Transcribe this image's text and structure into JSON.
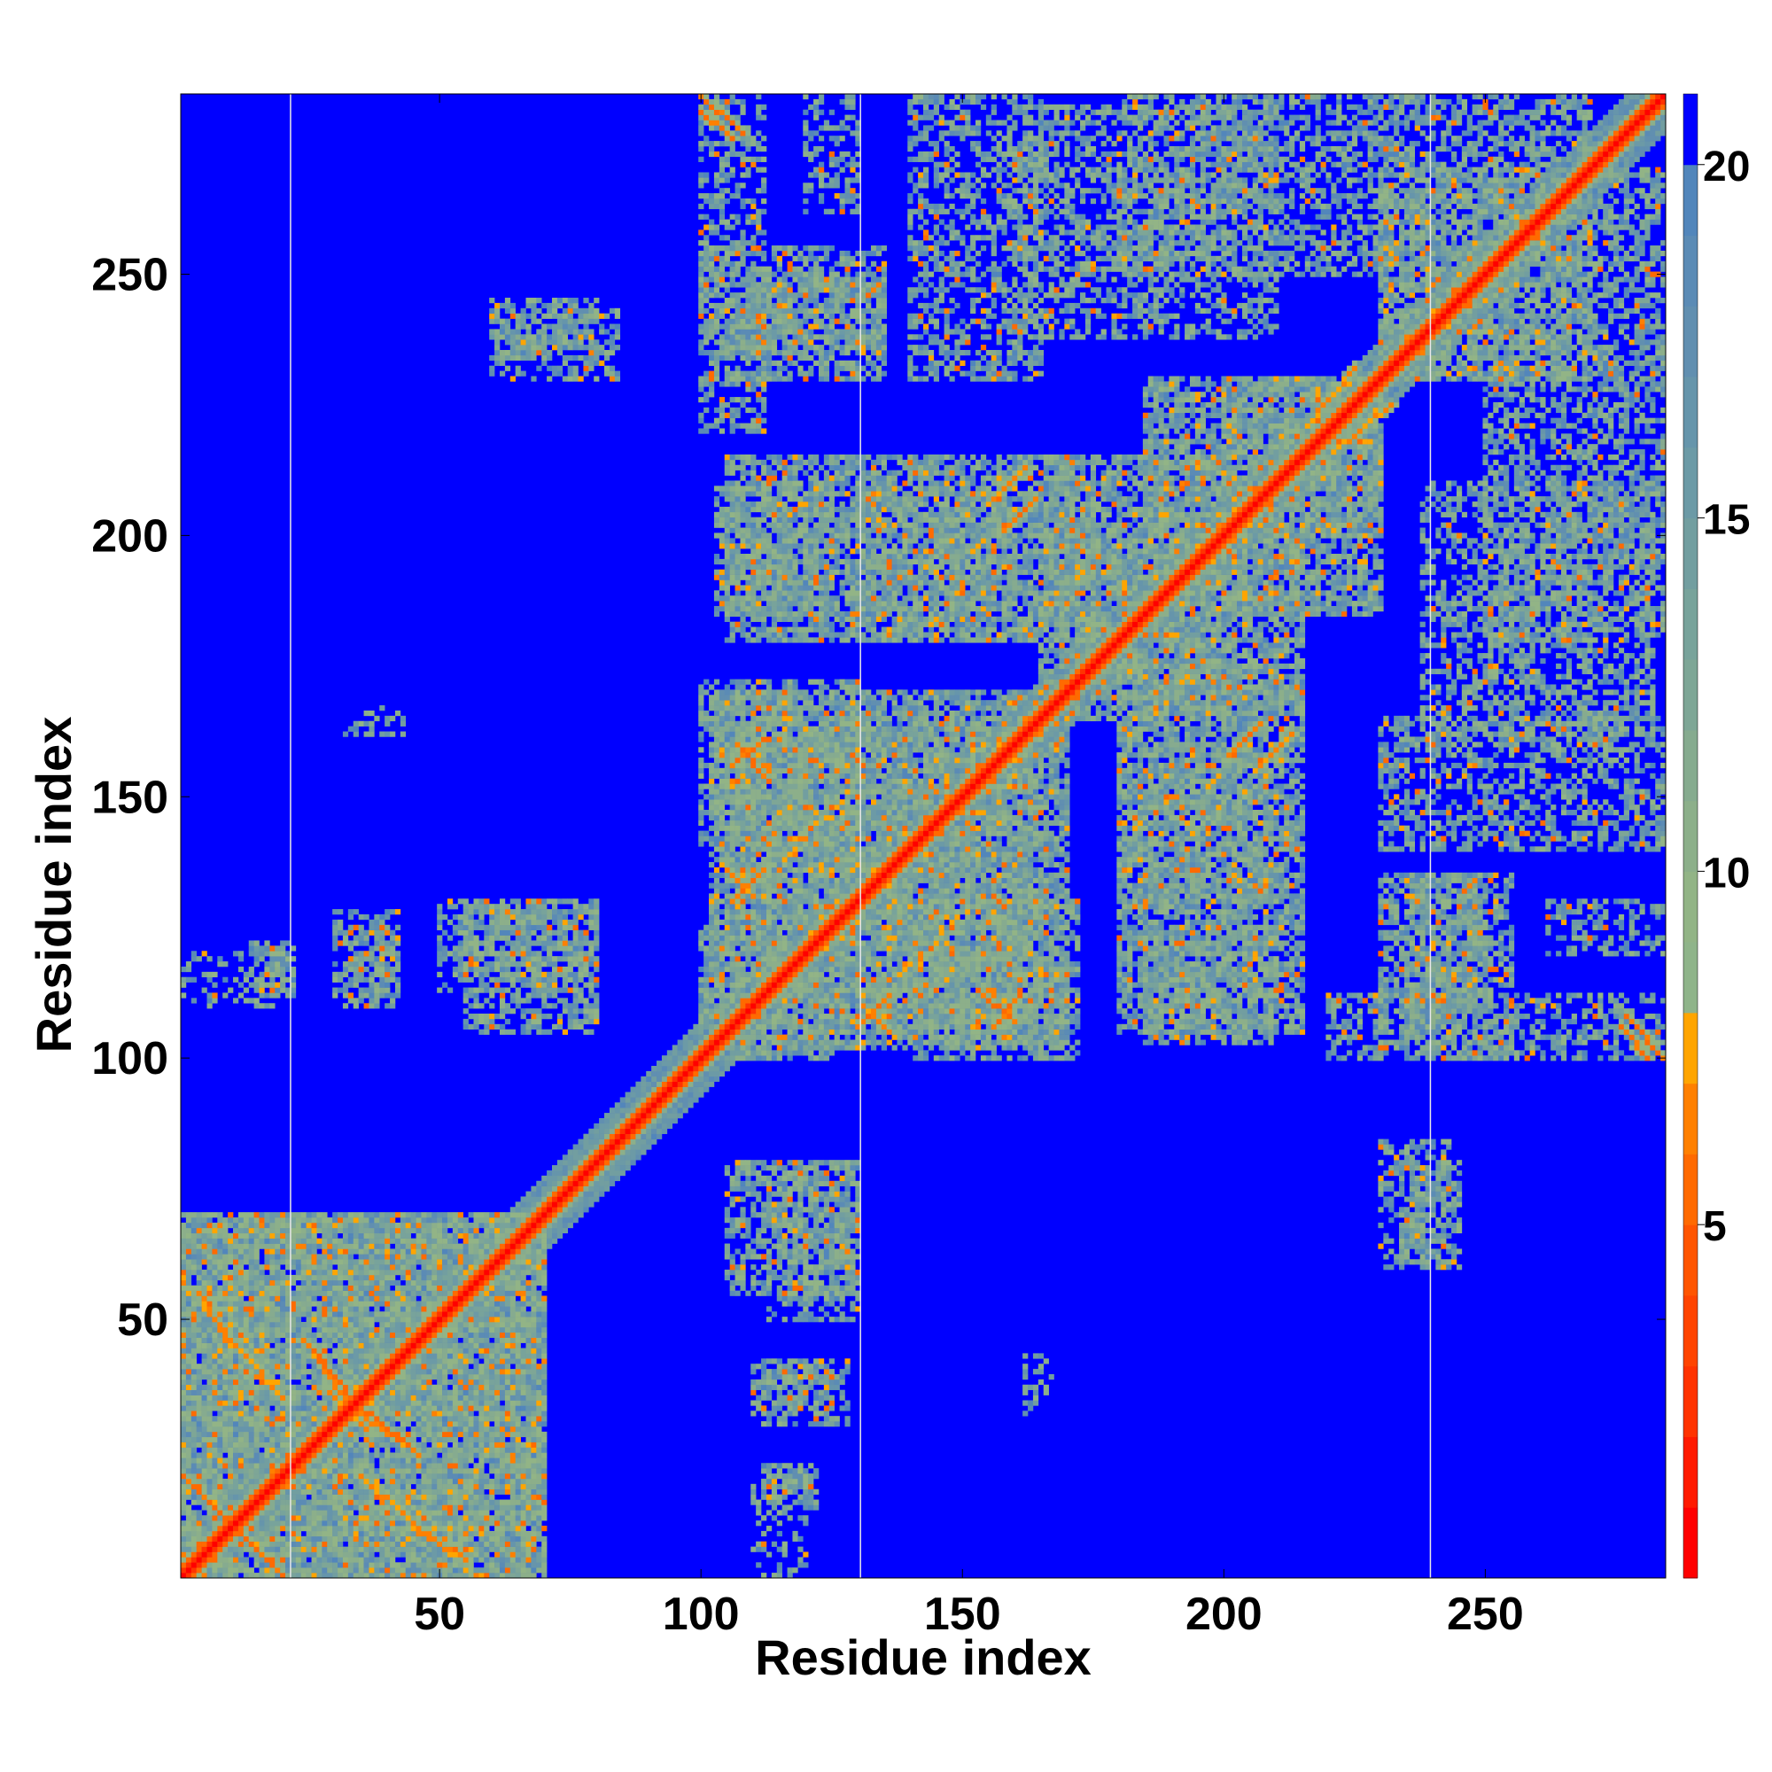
{
  "chart_data": {
    "type": "heatmap",
    "title": "",
    "xlabel": "Residue index",
    "ylabel": "Residue index",
    "n_residues": 284,
    "xlim": [
      1,
      284
    ],
    "ylim": [
      1,
      284
    ],
    "x_ticks": [
      50,
      100,
      150,
      200,
      250
    ],
    "y_ticks": [
      50,
      100,
      150,
      200,
      250
    ],
    "colorbar": {
      "ticks": [
        5,
        10,
        15,
        20
      ],
      "range": [
        0,
        21
      ],
      "levels": [
        {
          "max": 1,
          "color": "#ff0000"
        },
        {
          "max": 2,
          "color": "#ff1a00"
        },
        {
          "max": 3,
          "color": "#ff3300"
        },
        {
          "max": 4,
          "color": "#ff4400"
        },
        {
          "max": 5,
          "color": "#ff5500"
        },
        {
          "max": 6,
          "color": "#ff6a00"
        },
        {
          "max": 7,
          "color": "#ff8000"
        },
        {
          "max": 8,
          "color": "#ffa500"
        },
        {
          "max": 9,
          "color": "#8fb48a"
        },
        {
          "max": 10,
          "color": "#92b486"
        },
        {
          "max": 11,
          "color": "#8caf8a"
        },
        {
          "max": 12,
          "color": "#86ab8f"
        },
        {
          "max": 13,
          "color": "#7ea696"
        },
        {
          "max": 14,
          "color": "#78a39b"
        },
        {
          "max": 15,
          "color": "#729ea0"
        },
        {
          "max": 16,
          "color": "#6c9aa6"
        },
        {
          "max": 17,
          "color": "#6695ab"
        },
        {
          "max": 18,
          "color": "#618fb0"
        },
        {
          "max": 19,
          "color": "#5b8bb5"
        },
        {
          "max": 20,
          "color": "#5286bb"
        },
        {
          "max": 21,
          "color": "#0000ff"
        }
      ]
    },
    "background_color": "#0000ff",
    "chain_boundaries_x": [
      22,
      131,
      240
    ],
    "diagonal": {
      "start": 1,
      "end": 284,
      "core_value": 1.5,
      "band_width": 4
    },
    "contact_segments": [
      {
        "x": [
          1,
          20
        ],
        "y": [
          20,
          1
        ],
        "value": 5
      },
      {
        "x": [
          5,
          20
        ],
        "y": [
          52,
          35
        ],
        "value": 6
      },
      {
        "x": [
          24,
          35
        ],
        "y": [
          46,
          33
        ],
        "value": 5
      },
      {
        "x": [
          30,
          45
        ],
        "y": [
          35,
          25
        ],
        "value": 6
      },
      {
        "x": [
          45,
          55
        ],
        "y": [
          10,
          4
        ],
        "value": 6
      },
      {
        "x": [
          100,
          108
        ],
        "y": [
          284,
          277
        ],
        "value": 5
      },
      {
        "x": [
          104,
          110
        ],
        "y": [
          137,
          131
        ],
        "value": 6
      },
      {
        "x": [
          107,
          112
        ],
        "y": [
          160,
          154
        ],
        "value": 5
      },
      {
        "x": [
          130,
          136
        ],
        "y": [
          106,
          112
        ],
        "value": 5
      },
      {
        "x": [
          156,
          161
        ],
        "y": [
          106,
          112
        ],
        "value": 5
      },
      {
        "x": [
          158,
          164
        ],
        "y": [
          201,
          207
        ],
        "value": 5
      },
      {
        "x": [
          206,
          213
        ],
        "y": [
          155,
          162
        ],
        "value": 6
      },
      {
        "x": [
          216,
          225
        ],
        "y": [
          221,
          232
        ],
        "value": 6
      },
      {
        "x": [
          276,
          281
        ],
        "y": [
          106,
          100
        ],
        "value": 5
      }
    ],
    "contact_clusters": [
      {
        "x": [
          1,
          70
        ],
        "y": [
          1,
          70
        ],
        "density": 0.8
      },
      {
        "x": [
          1,
          20
        ],
        "y": [
          110,
          120
        ],
        "density": 0.3
      },
      {
        "x": [
          14,
          22
        ],
        "y": [
          112,
          122
        ],
        "density": 0.5
      },
      {
        "x": [
          30,
          42
        ],
        "y": [
          112,
          128
        ],
        "density": 0.4
      },
      {
        "x": [
          50,
          80
        ],
        "y": [
          113,
          130
        ],
        "density": 0.5
      },
      {
        "x": [
          60,
          84
        ],
        "y": [
          230,
          243
        ],
        "density": 0.5
      },
      {
        "x": [
          30,
          44
        ],
        "y": [
          162,
          165
        ],
        "density": 0.3
      },
      {
        "x": [
          100,
          112
        ],
        "y": [
          220,
          284
        ],
        "density": 0.5
      },
      {
        "x": [
          108,
          135
        ],
        "y": [
          230,
          250
        ],
        "density": 0.6
      },
      {
        "x": [
          140,
          165
        ],
        "y": [
          230,
          284
        ],
        "density": 0.5
      },
      {
        "x": [
          102,
          125
        ],
        "y": [
          100,
          170
        ],
        "density": 0.7
      },
      {
        "x": [
          125,
          165
        ],
        "y": [
          105,
          170
        ],
        "density": 0.7
      },
      {
        "x": [
          140,
          172
        ],
        "y": [
          100,
          130
        ],
        "density": 0.6
      },
      {
        "x": [
          103,
          125
        ],
        "y": [
          185,
          210
        ],
        "density": 0.6
      },
      {
        "x": [
          130,
          160
        ],
        "y": [
          180,
          210
        ],
        "density": 0.6
      },
      {
        "x": [
          165,
          200
        ],
        "y": [
          170,
          215
        ],
        "density": 0.7
      },
      {
        "x": [
          180,
          215
        ],
        "y": [
          105,
          175
        ],
        "density": 0.7
      },
      {
        "x": [
          200,
          230
        ],
        "y": [
          185,
          230
        ],
        "density": 0.7
      },
      {
        "x": [
          180,
          230
        ],
        "y": [
          250,
          284
        ],
        "density": 0.5
      },
      {
        "x": [
          230,
          270
        ],
        "y": [
          230,
          284
        ],
        "density": 0.6
      },
      {
        "x": [
          235,
          255
        ],
        "y": [
          100,
          135
        ],
        "density": 0.6
      },
      {
        "x": [
          238,
          282
        ],
        "y": [
          160,
          210
        ],
        "density": 0.5
      },
      {
        "x": [
          262,
          284
        ],
        "y": [
          120,
          130
        ],
        "density": 0.4
      },
      {
        "x": [
          234,
          245
        ],
        "y": [
          60,
          80
        ],
        "density": 0.6
      },
      {
        "x": [
          105,
          130
        ],
        "y": [
          55,
          80
        ],
        "density": 0.6
      },
      {
        "x": [
          110,
          125
        ],
        "y": [
          30,
          42
        ],
        "density": 0.5
      },
      {
        "x": [
          112,
          120
        ],
        "y": [
          15,
          20
        ],
        "density": 0.5
      },
      {
        "x": [
          162,
          167
        ],
        "y": [
          36,
          43
        ],
        "density": 0.4
      }
    ]
  }
}
